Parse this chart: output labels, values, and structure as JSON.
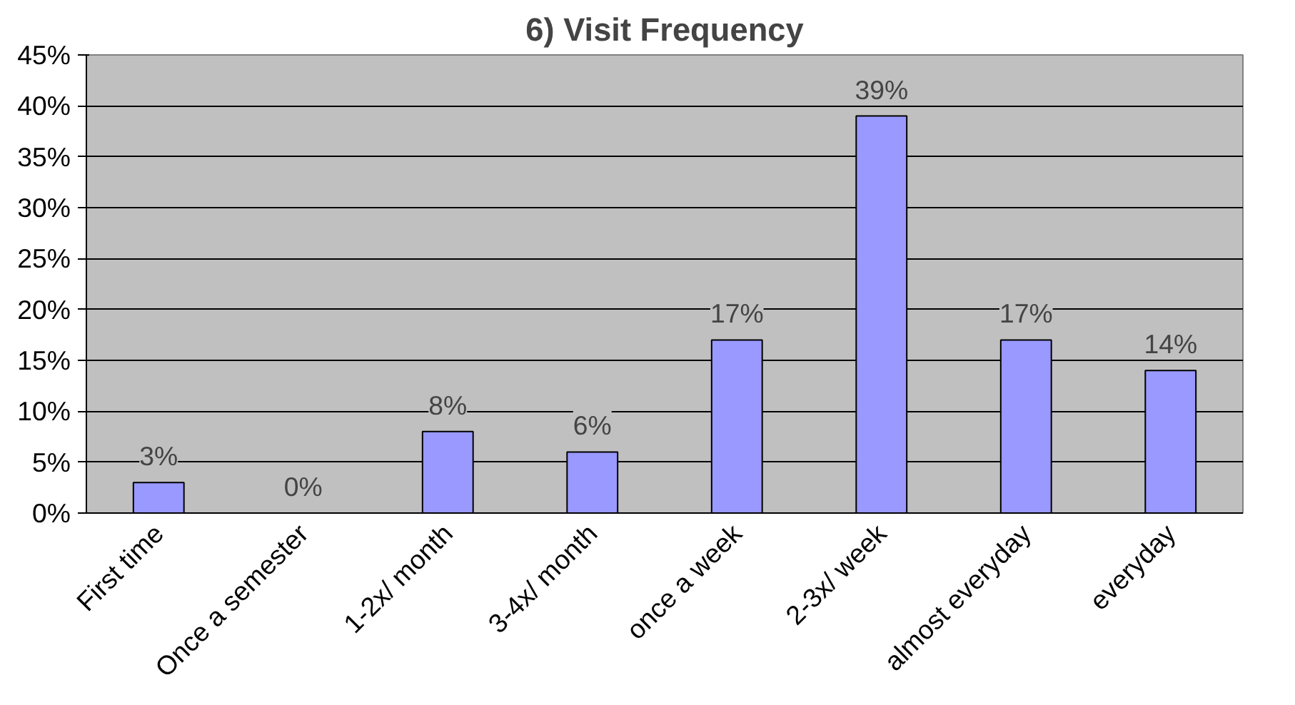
{
  "chart_data": {
    "type": "bar",
    "title": "6) Visit Frequency",
    "categories": [
      "First time",
      "Once a semester",
      "1-2x/ month",
      "3-4x/ month",
      "once a week",
      "2-3x/ week",
      "almost everyday",
      "everyday"
    ],
    "values": [
      3,
      0,
      8,
      6,
      17,
      39,
      17,
      14
    ],
    "value_labels": [
      "3%",
      "0%",
      "8%",
      "6%",
      "17%",
      "39%",
      "17%",
      "14%"
    ],
    "color": "#9999ff",
    "ylim": [
      0,
      45
    ],
    "yticks": [
      {
        "value": 0,
        "label": "0%"
      },
      {
        "value": 5,
        "label": "5%"
      },
      {
        "value": 10,
        "label": "10%"
      },
      {
        "value": 15,
        "label": "15%"
      },
      {
        "value": 20,
        "label": "20%"
      },
      {
        "value": 25,
        "label": "25%"
      },
      {
        "value": 30,
        "label": "30%"
      },
      {
        "value": 35,
        "label": "35%"
      },
      {
        "value": 40,
        "label": "40%"
      },
      {
        "value": 45,
        "label": "45%"
      }
    ],
    "grid": "y"
  }
}
